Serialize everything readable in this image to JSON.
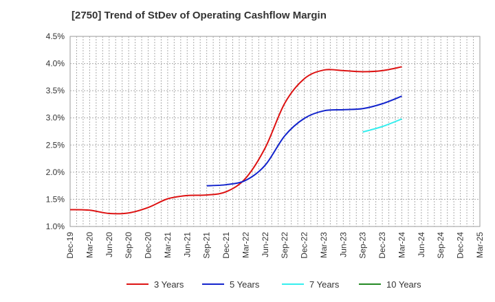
{
  "chart_data": {
    "type": "line",
    "title": "[2750]  Trend of StDev of Operating Cashflow Margin",
    "x_categories": [
      "Dec-19",
      "Mar-20",
      "Jun-20",
      "Sep-20",
      "Dec-20",
      "Mar-21",
      "Jun-21",
      "Sep-21",
      "Dec-21",
      "Mar-22",
      "Jun-22",
      "Sep-22",
      "Dec-22",
      "Mar-23",
      "Jun-23",
      "Sep-23",
      "Dec-23",
      "Mar-24",
      "Jun-24",
      "Sep-24",
      "Dec-24",
      "Mar-25"
    ],
    "y_ticks": [
      "1.0%",
      "1.5%",
      "2.0%",
      "2.5%",
      "3.0%",
      "3.5%",
      "4.0%",
      "4.5%"
    ],
    "ylim": [
      1.0,
      4.5
    ],
    "grid": true,
    "legend_position": "bottom",
    "series": [
      {
        "name": "3 Years",
        "color": "#dd1111",
        "values": [
          1.31,
          1.3,
          1.24,
          1.25,
          1.35,
          1.51,
          1.57,
          1.58,
          1.64,
          1.89,
          2.45,
          3.27,
          3.72,
          3.88,
          3.87,
          3.85,
          3.87,
          3.94,
          null,
          null,
          null,
          null
        ]
      },
      {
        "name": "5 Years",
        "color": "#1122cc",
        "values": [
          null,
          null,
          null,
          null,
          null,
          null,
          null,
          1.75,
          1.77,
          1.85,
          2.13,
          2.67,
          2.99,
          3.13,
          3.15,
          3.17,
          3.26,
          3.4,
          null,
          null,
          null,
          null
        ]
      },
      {
        "name": "7 Years",
        "color": "#33eeee",
        "values": [
          null,
          null,
          null,
          null,
          null,
          null,
          null,
          null,
          null,
          null,
          null,
          null,
          null,
          null,
          null,
          2.74,
          2.84,
          2.98,
          null,
          null,
          null,
          null
        ]
      },
      {
        "name": "10 Years",
        "color": "#228822",
        "values": [
          null,
          null,
          null,
          null,
          null,
          null,
          null,
          null,
          null,
          null,
          null,
          null,
          null,
          null,
          null,
          null,
          null,
          null,
          null,
          null,
          null,
          null
        ]
      }
    ]
  }
}
